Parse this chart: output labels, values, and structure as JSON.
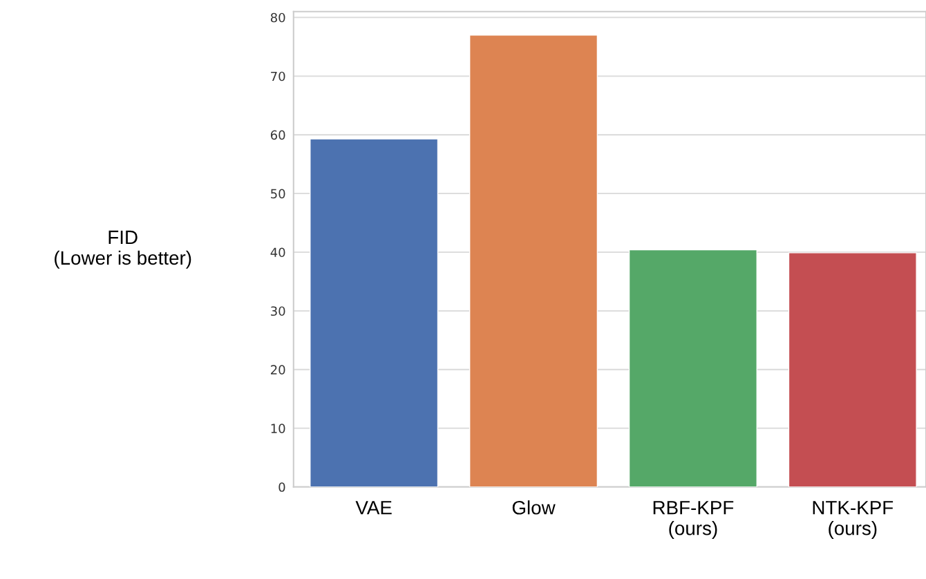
{
  "chart_data": {
    "type": "bar",
    "ylabel": "FID\n(Lower is better)",
    "categories": [
      "VAE",
      "Glow",
      "RBF-KPF\n(ours)",
      "NTK-KPF\n(ours)"
    ],
    "values": [
      59.3,
      77.0,
      40.4,
      39.9
    ],
    "colors": [
      "#4c72b0",
      "#dd8452",
      "#55a868",
      "#c44e52"
    ],
    "ylim": [
      0,
      81
    ],
    "yticks": [
      0,
      10,
      20,
      30,
      40,
      50,
      60,
      70,
      80
    ],
    "grid": "y"
  }
}
